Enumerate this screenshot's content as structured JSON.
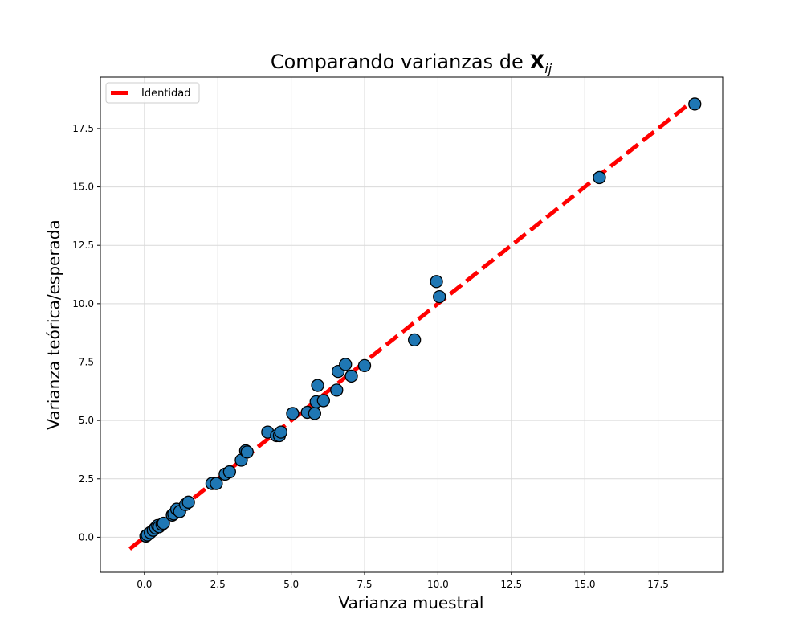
{
  "chart_data": {
    "type": "scatter",
    "title": "Comparando varianzas de",
    "title_math": {
      "base": "X",
      "subscript": "ij"
    },
    "xlabel": "Varianza muestral",
    "ylabel": "Varianza teórica/esperada",
    "xlim": [
      -1.5,
      19.7
    ],
    "ylim": [
      -1.5,
      19.7
    ],
    "xticks": [
      0.0,
      2.5,
      5.0,
      7.5,
      10.0,
      12.5,
      15.0,
      17.5
    ],
    "yticks": [
      0.0,
      2.5,
      5.0,
      7.5,
      10.0,
      12.5,
      15.0,
      17.5
    ],
    "xtick_labels": [
      "0.0",
      "2.5",
      "5.0",
      "7.5",
      "10.0",
      "12.5",
      "15.0",
      "17.5"
    ],
    "ytick_labels": [
      "0.0",
      "2.5",
      "5.0",
      "7.5",
      "10.0",
      "12.5",
      "15.0",
      "17.5"
    ],
    "grid": true,
    "legend_position": "top-left",
    "colors": {
      "points": "#1f77b4",
      "point_edge": "#000000",
      "identity": "#ff0000",
      "grid": "#d9d9d9"
    },
    "series": [
      {
        "name": "",
        "kind": "scatter",
        "x": [
          0.05,
          0.1,
          0.2,
          0.3,
          0.38,
          0.45,
          0.5,
          0.6,
          0.65,
          0.95,
          1.0,
          1.1,
          1.2,
          1.4,
          1.5,
          2.3,
          2.45,
          2.75,
          2.9,
          3.3,
          3.45,
          3.5,
          4.2,
          4.5,
          4.6,
          4.65,
          5.05,
          5.55,
          5.8,
          5.85,
          5.9,
          6.1,
          6.55,
          6.6,
          6.85,
          7.05,
          7.5,
          9.2,
          9.95,
          10.05,
          15.5,
          18.75
        ],
        "y": [
          0.05,
          0.1,
          0.2,
          0.3,
          0.4,
          0.5,
          0.45,
          0.55,
          0.6,
          0.95,
          1.0,
          1.2,
          1.1,
          1.4,
          1.5,
          2.3,
          2.3,
          2.7,
          2.8,
          3.3,
          3.7,
          3.65,
          4.5,
          4.35,
          4.35,
          4.5,
          5.3,
          5.35,
          5.3,
          5.8,
          6.5,
          5.85,
          6.3,
          7.1,
          7.4,
          6.9,
          7.35,
          8.45,
          10.95,
          10.3,
          15.4,
          18.55
        ]
      },
      {
        "name": "Identidad",
        "kind": "line",
        "style": "dashed",
        "x": [
          -0.5,
          18.75
        ],
        "y": [
          -0.5,
          18.75
        ]
      }
    ]
  }
}
